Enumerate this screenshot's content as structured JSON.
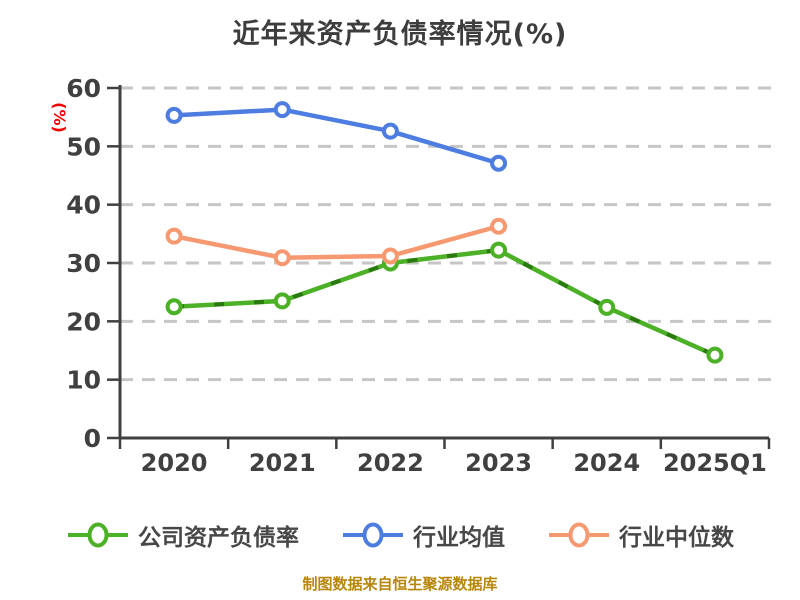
{
  "title": "近年来资产负债率情况(%)",
  "y_axis_label": "(%)",
  "footer": {
    "credit": "制图数据来自恒生聚源数据库"
  },
  "colors": {
    "title_text": "#3d3d3d",
    "axis_text": "#404040",
    "axis_line": "#404040",
    "gridline": "#c6c6c6",
    "ylabel_red": "#f20000",
    "footer_gold": "#b8860b",
    "company_green": "#4cb126",
    "company_green_dash": "#2a7a12",
    "industry_mean_blue": "#4d7de0",
    "industry_median_orange": "#f79970",
    "marker_fill": "#ffffff"
  },
  "legend": {
    "items": [
      {
        "label": "公司资产负债率",
        "color": "#4cb126"
      },
      {
        "label": "行业均值",
        "color": "#4d7de0"
      },
      {
        "label": "行业中位数",
        "color": "#f79970"
      }
    ]
  },
  "chart_data": {
    "type": "line",
    "title": "近年来资产负债率情况(%)",
    "ylabel": "(%)",
    "xlabel": "",
    "categories": [
      "2020",
      "2021",
      "2022",
      "2023",
      "2024",
      "2025Q1"
    ],
    "series": [
      {
        "name": "公司资产负债率",
        "color": "#4cb126",
        "dash_overlay": "#2a7a12",
        "values": [
          22.5,
          23.5,
          30.0,
          32.2,
          22.4,
          14.2
        ]
      },
      {
        "name": "行业均值",
        "color": "#4d7de0",
        "dash_overlay": null,
        "values": [
          55.3,
          56.3,
          52.6,
          47.1,
          null,
          null
        ]
      },
      {
        "name": "行业中位数",
        "color": "#f79970",
        "dash_overlay": null,
        "values": [
          34.6,
          30.9,
          31.2,
          36.3,
          null,
          null
        ]
      }
    ],
    "ylim": [
      0,
      60
    ],
    "yticks": [
      0,
      10,
      20,
      30,
      40,
      50,
      60
    ],
    "grid": "horizontal-dashed",
    "legend_position": "bottom"
  }
}
